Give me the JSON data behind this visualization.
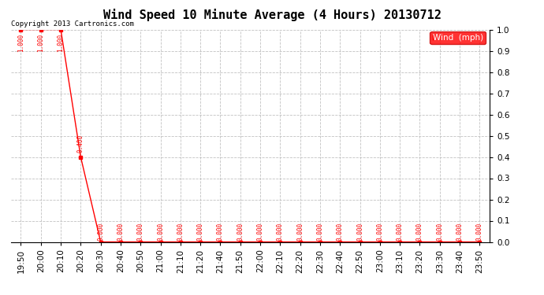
{
  "title": "Wind Speed 10 Minute Average (4 Hours) 20130712",
  "copyright_text": "Copyright 2013 Cartronics.com",
  "legend_label": "Wind  (mph)",
  "legend_bg": "#ff0000",
  "legend_text_color": "#ffffff",
  "line_color": "#ff0000",
  "marker_color": "#ff0000",
  "ylim": [
    0.0,
    1.0
  ],
  "ytick_positions": [
    0.0,
    0.1,
    0.2,
    0.3,
    0.4,
    0.5,
    0.6,
    0.7,
    0.8,
    0.9,
    1.0
  ],
  "ytick_labels": [
    "0.0",
    "0.1",
    "0.2",
    "0.3",
    "0.4",
    "0.5",
    "0.6",
    "0.7",
    "0.8",
    "0.9",
    "1.0"
  ],
  "background_color": "#ffffff",
  "grid_color": "#bbbbbb",
  "x_labels": [
    "19:50",
    "20:00",
    "20:10",
    "20:20",
    "20:30",
    "20:40",
    "20:50",
    "21:00",
    "21:10",
    "21:20",
    "21:40",
    "21:50",
    "22:00",
    "22:10",
    "22:20",
    "22:30",
    "22:40",
    "22:50",
    "23:00",
    "23:10",
    "23:20",
    "23:30",
    "23:40",
    "23:50"
  ],
  "y_values": [
    1.0,
    1.0,
    1.0,
    0.4,
    0.0,
    0.0,
    0.0,
    0.0,
    0.0,
    0.0,
    0.0,
    0.0,
    0.0,
    0.0,
    0.0,
    0.0,
    0.0,
    0.0,
    0.0,
    0.0,
    0.0,
    0.0,
    0.0,
    0.0
  ],
  "data_labels": [
    "1.000",
    "1.000",
    "1.000",
    "0.400",
    "0.000",
    "0.000",
    "0.000",
    "0.000",
    "0.000",
    "0.000",
    "0.000",
    "0.000",
    "0.000",
    "0.000",
    "0.000",
    "0.000",
    "0.000",
    "0.000",
    "0.000",
    "0.000",
    "0.000",
    "0.000",
    "0.000",
    "0.000"
  ],
  "title_fontsize": 11,
  "axis_fontsize": 7.5,
  "label_fontsize": 5.5,
  "copyright_fontsize": 6.5
}
